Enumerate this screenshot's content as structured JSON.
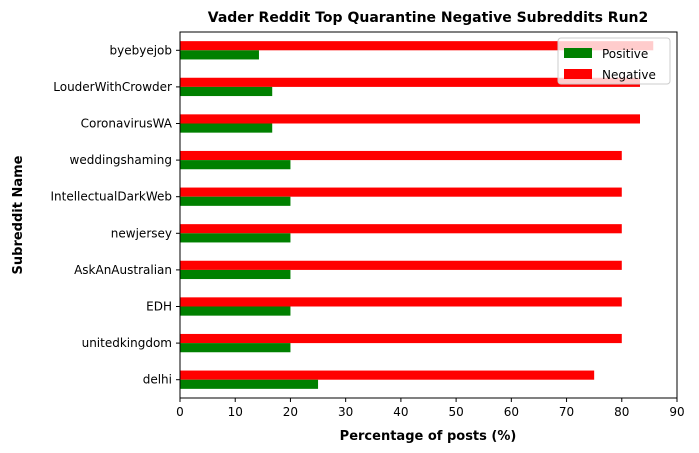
{
  "chart_data": {
    "type": "bar",
    "orientation": "horizontal",
    "title": "Vader Reddit Top Quarantine Negative Subreddits Run2",
    "xlabel": "Percentage of posts (%)",
    "ylabel": "Subreddit Name",
    "xlim": [
      0,
      90
    ],
    "xticks": [
      0,
      10,
      20,
      30,
      40,
      50,
      60,
      70,
      80,
      90
    ],
    "grid": false,
    "legend_position": "top-right",
    "categories": [
      "delhi",
      "unitedkingdom",
      "EDH",
      "AskAnAustralian",
      "newjersey",
      "IntellectualDarkWeb",
      "weddingshaming",
      "CoronavirusWA",
      "LouderWithCrowder",
      "byebyejob"
    ],
    "series": [
      {
        "name": "Positive",
        "color": "#008000",
        "values": [
          25,
          20,
          20,
          20,
          20,
          20,
          20,
          16.7,
          16.7,
          14.3
        ]
      },
      {
        "name": "Negative",
        "color": "#ff0000",
        "values": [
          75,
          80,
          80,
          80,
          80,
          80,
          80,
          83.3,
          83.3,
          85.7
        ]
      }
    ]
  }
}
